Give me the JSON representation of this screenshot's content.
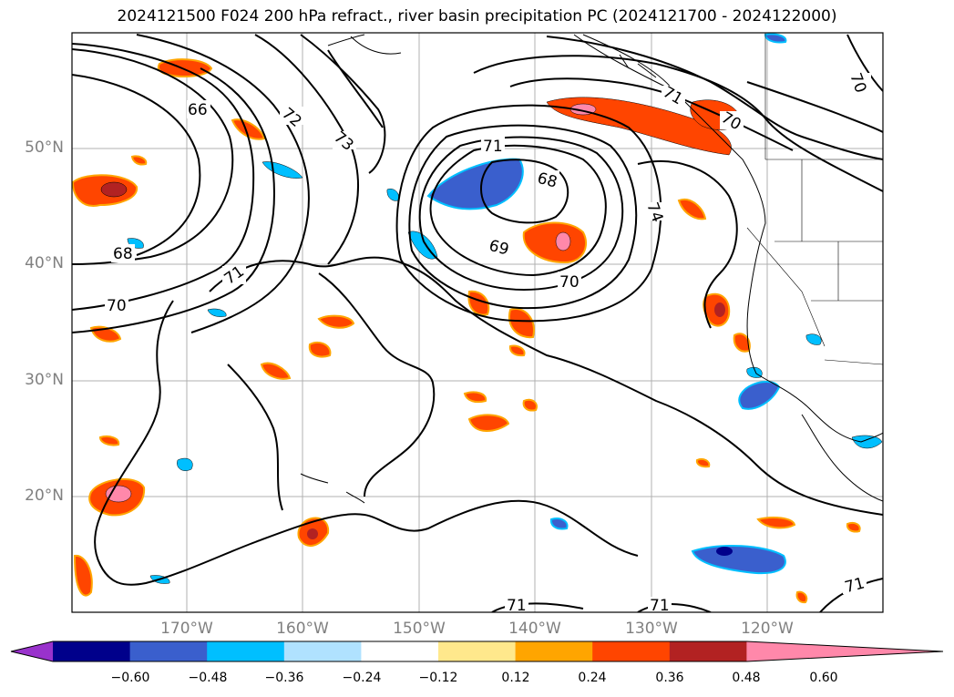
{
  "title": "2024121500 F024 200 hPa refract., river basin precipitation PC (2024121700 - 2024122000)",
  "lat_labels": [
    "50°N",
    "40°N",
    "30°N",
    "20°N"
  ],
  "lon_labels": [
    "170°W",
    "160°W",
    "150°W",
    "140°W",
    "130°W",
    "120°W"
  ],
  "contour_labels": [
    "66",
    "72",
    "73",
    "71",
    "68",
    "69",
    "70",
    "71",
    "74",
    "70",
    "68",
    "71",
    "70",
    "71",
    "71",
    "71",
    "70"
  ],
  "colorbar": {
    "ticks": [
      "−0.60",
      "−0.48",
      "−0.36",
      "−0.24",
      "−0.12",
      "0.12",
      "0.24",
      "0.36",
      "0.48",
      "0.60"
    ],
    "colors": [
      "#9932cc",
      "#00008b",
      "#3a5fcd",
      "#00bfff",
      "#b0e2ff",
      "#ffffff",
      "#ffe88c",
      "#ffa500",
      "#ff4500",
      "#b22222",
      "#ff88aa"
    ]
  }
}
